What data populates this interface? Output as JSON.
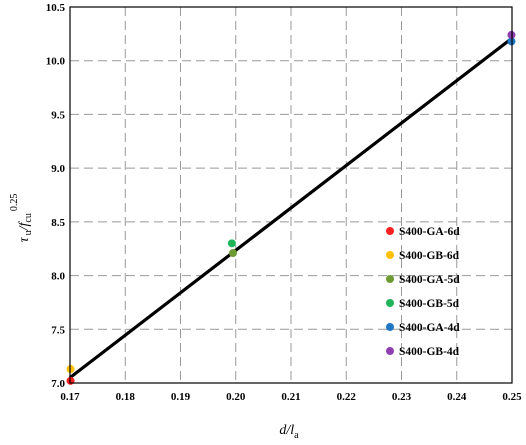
{
  "chart_data": {
    "type": "scatter",
    "xlabel": {
      "main": "d/l",
      "sub": "a"
    },
    "ylabel": {
      "tau": "τ",
      "tau_sub": "u",
      "slash_f": "/f",
      "f_sub": "cu",
      "exp": "0.25"
    },
    "xlim": [
      0.17,
      0.25
    ],
    "ylim": [
      7.0,
      10.5
    ],
    "xticks": [
      "0.17",
      "0.18",
      "0.19",
      "0.20",
      "0.21",
      "0.22",
      "0.23",
      "0.24",
      "0.25"
    ],
    "yticks": [
      "7.0",
      "7.5",
      "8.0",
      "8.5",
      "9.0",
      "9.5",
      "10.0",
      "10.5"
    ],
    "grid": true,
    "legend_position": "right",
    "series": [
      {
        "name": "S400-GA-6d",
        "color": "#ff2020",
        "points": [
          [
            0.1701,
            7.02
          ]
        ]
      },
      {
        "name": "S400-GB-6d",
        "color": "#ffc000",
        "points": [
          [
            0.1701,
            7.13
          ]
        ]
      },
      {
        "name": "S400-GA-5d",
        "color": "#6e9a32",
        "points": [
          [
            0.1995,
            8.21
          ]
        ]
      },
      {
        "name": "S400-GB-5d",
        "color": "#1fb45a",
        "points": [
          [
            0.1993,
            8.3
          ]
        ]
      },
      {
        "name": "S400-GA-4d",
        "color": "#1f77c4",
        "points": [
          [
            0.2499,
            10.18
          ]
        ]
      },
      {
        "name": "S400-GB-4d",
        "color": "#8e3fb0",
        "points": [
          [
            0.2499,
            10.24
          ]
        ]
      }
    ],
    "fit_line": {
      "color": "#000000",
      "points": [
        [
          0.17,
          7.05
        ],
        [
          0.25,
          10.21
        ]
      ]
    }
  }
}
